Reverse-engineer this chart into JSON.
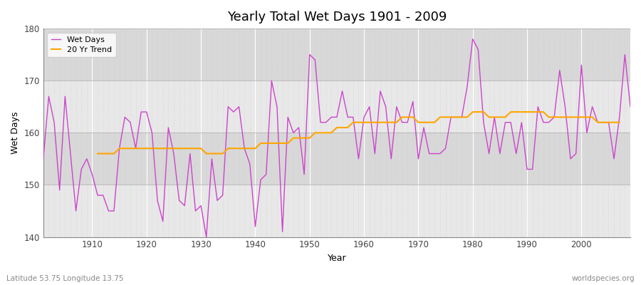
{
  "title": "Yearly Total Wet Days 1901 - 2009",
  "xlabel": "Year",
  "ylabel": "Wet Days",
  "xlim": [
    1901,
    2009
  ],
  "ylim": [
    140,
    180
  ],
  "yticks": [
    140,
    150,
    160,
    170,
    180
  ],
  "xticks": [
    1910,
    1920,
    1930,
    1940,
    1950,
    1960,
    1970,
    1980,
    1990,
    2000
  ],
  "bg_color": "#ffffff",
  "plot_bg_light": "#f0f0f0",
  "plot_bg_dark": "#e0e0e0",
  "wet_days_color": "#CC44CC",
  "trend_color": "#FFA500",
  "bottom_left_text": "Latitude 53.75 Longitude 13.75",
  "bottom_right_text": "worldspecies.org",
  "legend_labels": [
    "Wet Days",
    "20 Yr Trend"
  ],
  "years": [
    1901,
    1902,
    1903,
    1904,
    1905,
    1906,
    1907,
    1908,
    1909,
    1910,
    1911,
    1912,
    1913,
    1914,
    1915,
    1916,
    1917,
    1918,
    1919,
    1920,
    1921,
    1922,
    1923,
    1924,
    1925,
    1926,
    1927,
    1928,
    1929,
    1930,
    1931,
    1932,
    1933,
    1934,
    1935,
    1936,
    1937,
    1938,
    1939,
    1940,
    1941,
    1942,
    1943,
    1944,
    1945,
    1946,
    1947,
    1948,
    1949,
    1950,
    1951,
    1952,
    1953,
    1954,
    1955,
    1956,
    1957,
    1958,
    1959,
    1960,
    1961,
    1962,
    1963,
    1964,
    1965,
    1966,
    1967,
    1968,
    1969,
    1970,
    1971,
    1972,
    1973,
    1974,
    1975,
    1976,
    1977,
    1978,
    1979,
    1980,
    1981,
    1982,
    1983,
    1984,
    1985,
    1986,
    1987,
    1988,
    1989,
    1990,
    1991,
    1992,
    1993,
    1994,
    1995,
    1996,
    1997,
    1998,
    1999,
    2000,
    2001,
    2002,
    2003,
    2004,
    2005,
    2006,
    2007,
    2008,
    2009
  ],
  "wet_days": [
    155,
    167,
    162,
    149,
    167,
    156,
    145,
    153,
    155,
    152,
    148,
    148,
    145,
    145,
    157,
    163,
    162,
    157,
    164,
    164,
    160,
    147,
    143,
    161,
    156,
    147,
    146,
    156,
    145,
    146,
    140,
    155,
    147,
    148,
    165,
    164,
    165,
    157,
    154,
    142,
    151,
    152,
    170,
    165,
    141,
    163,
    160,
    161,
    152,
    175,
    174,
    162,
    162,
    163,
    163,
    168,
    163,
    163,
    155,
    163,
    165,
    156,
    168,
    165,
    155,
    165,
    162,
    162,
    166,
    155,
    161,
    156,
    156,
    156,
    157,
    163,
    163,
    163,
    169,
    178,
    176,
    162,
    156,
    163,
    156,
    162,
    162,
    156,
    162,
    153,
    153,
    165,
    162,
    162,
    163,
    172,
    165,
    155,
    156,
    173,
    160,
    165,
    162,
    162,
    162,
    155,
    163,
    175,
    165
  ],
  "trend": [
    null,
    null,
    null,
    null,
    null,
    null,
    null,
    null,
    null,
    null,
    156,
    156,
    156,
    156,
    157,
    157,
    157,
    157,
    157,
    157,
    157,
    157,
    157,
    157,
    157,
    157,
    157,
    157,
    157,
    157,
    156,
    156,
    156,
    156,
    157,
    157,
    157,
    157,
    157,
    157,
    158,
    158,
    158,
    158,
    158,
    158,
    159,
    159,
    159,
    159,
    160,
    160,
    160,
    160,
    161,
    161,
    161,
    162,
    162,
    162,
    162,
    162,
    162,
    162,
    162,
    162,
    163,
    163,
    163,
    162,
    162,
    162,
    162,
    163,
    163,
    163,
    163,
    163,
    163,
    164,
    164,
    164,
    163,
    163,
    163,
    163,
    164,
    164,
    164,
    164,
    164,
    164,
    164,
    163,
    163,
    163,
    163,
    163,
    163,
    163,
    163,
    163,
    162,
    162,
    162,
    162,
    162,
    null,
    null
  ]
}
